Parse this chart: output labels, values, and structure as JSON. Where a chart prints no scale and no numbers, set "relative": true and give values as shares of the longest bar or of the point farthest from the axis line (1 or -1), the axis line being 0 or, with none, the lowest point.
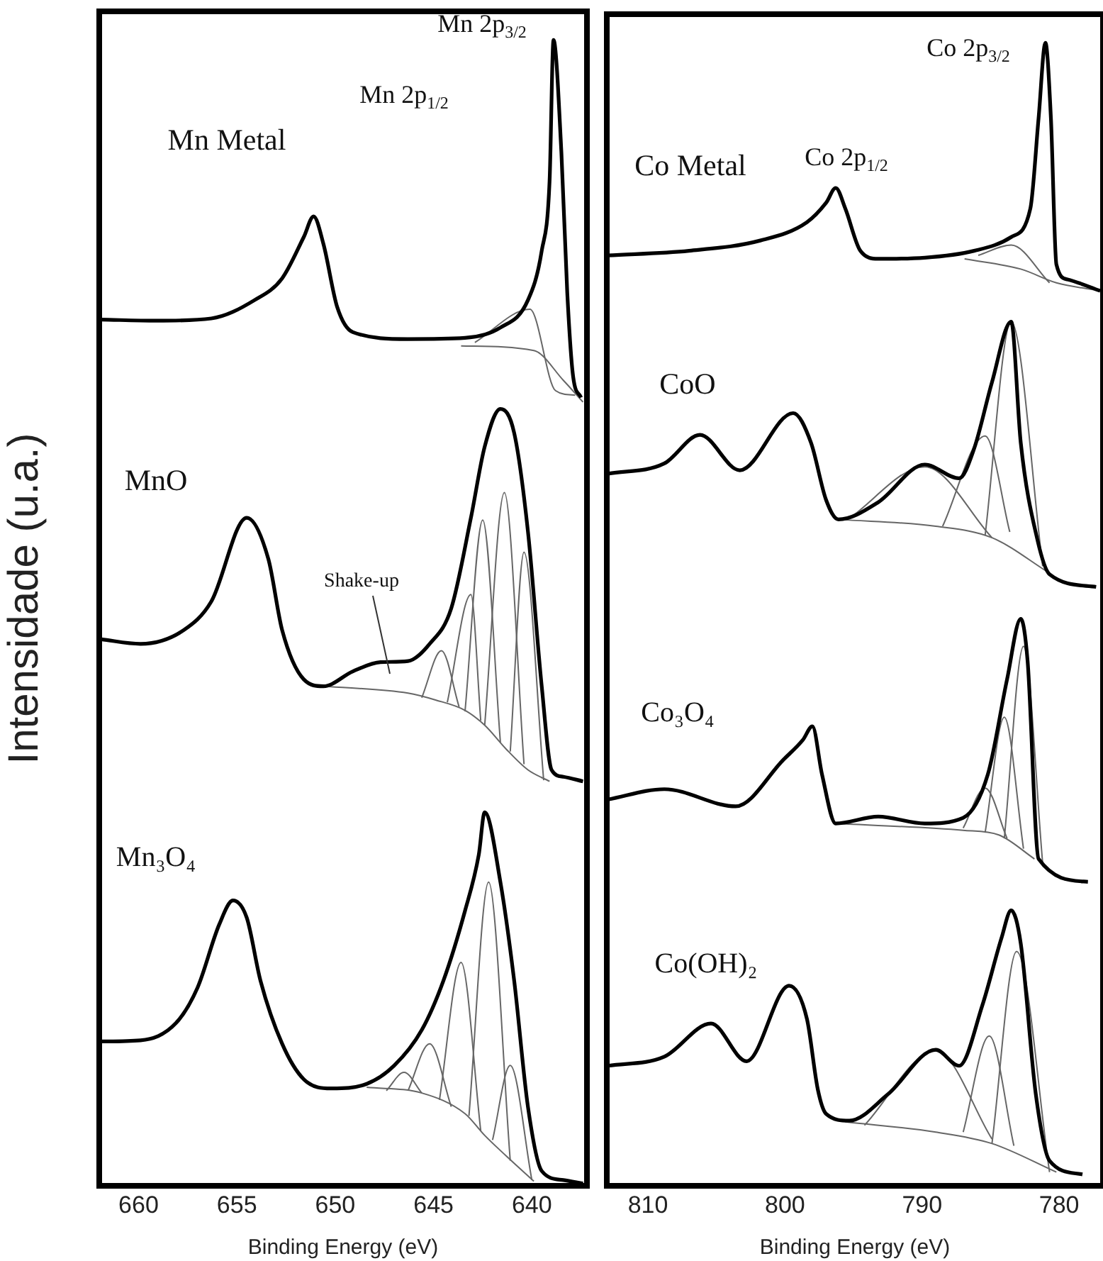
{
  "chart_data": [
    {
      "type": "line",
      "ylabel": "Intensidade (u.a.)",
      "xlabel": "Binding Energy (eV)",
      "relative": true,
      "xlim": [
        662,
        637.2
      ],
      "xticks": [
        660,
        655,
        650,
        645,
        640
      ],
      "grid": false,
      "legend": false,
      "annotations": [
        "Mn Metal",
        "Mn 2p$_{1/2}$",
        "Mn 2p$_{3/2}$",
        "MnO",
        "Shake-up",
        "Mn₃O₄"
      ],
      "series": [
        {
          "color": "#000000",
          "x": [
            661.9,
            659.1,
            656.3,
            654.1,
            652.7,
            651.6,
            651.1,
            650.6,
            649.9,
            649.1,
            646.3,
            643.4,
            641.6,
            640.2,
            639.5,
            639.1,
            638.9,
            638.5,
            638.2,
            637.9,
            637.5
          ],
          "values": [
            0.756,
            0.755,
            0.757,
            0.773,
            0.792,
            0.828,
            0.846,
            0.822,
            0.767,
            0.745,
            0.739,
            0.74,
            0.749,
            0.773,
            0.816,
            0.877,
            1.0,
            0.902,
            0.779,
            0.706,
            0.688
          ]
        },
        {
          "color": "#666666",
          "x": [
            642.9,
            640.1,
            638.8,
            637.8
          ],
          "values": [
            0.736,
            0.765,
            0.694,
            0.69
          ]
        },
        {
          "color": "#666666",
          "x": [
            643.6,
            639.9,
            638.4,
            637.4
          ],
          "values": [
            0.733,
            0.729,
            0.703,
            0.684
          ]
        },
        {
          "color": "#000000",
          "x": [
            661.9,
            659.9,
            657.7,
            656.3,
            654.5,
            653.4,
            652.7,
            651.6,
            650.6,
            649.1,
            647.7,
            646.3,
            645.2,
            644.1,
            643.1,
            642.4,
            641.6,
            640.9,
            640.2,
            639.5,
            639.0,
            638.4,
            637.4
          ],
          "values": [
            0.477,
            0.473,
            0.485,
            0.51,
            0.583,
            0.547,
            0.485,
            0.442,
            0.436,
            0.449,
            0.457,
            0.458,
            0.473,
            0.504,
            0.583,
            0.645,
            0.678,
            0.657,
            0.571,
            0.436,
            0.363,
            0.357,
            0.353
          ]
        },
        {
          "color": "#666666",
          "x": [
            650.6,
            646.3,
            644.9,
            643.4,
            642.4,
            641.3,
            640.2,
            639.1
          ],
          "values": [
            0.436,
            0.43,
            0.424,
            0.415,
            0.402,
            0.381,
            0.363,
            0.353
          ]
        },
        {
          "color": "#666666",
          "x": [
            645.6,
            644.6,
            643.7
          ],
          "values": [
            0.426,
            0.467,
            0.418
          ]
        },
        {
          "color": "#666666",
          "x": [
            644.3,
            643.1,
            642.6
          ],
          "values": [
            0.422,
            0.516,
            0.406
          ]
        },
        {
          "color": "#666666",
          "x": [
            643.4,
            642.5,
            641.6
          ],
          "values": [
            0.414,
            0.581,
            0.387
          ]
        },
        {
          "color": "#666666",
          "x": [
            642.4,
            641.4,
            640.4
          ],
          "values": [
            0.402,
            0.605,
            0.368
          ]
        },
        {
          "color": "#666666",
          "x": [
            641.1,
            640.4,
            639.4
          ],
          "values": [
            0.379,
            0.553,
            0.354
          ]
        },
        {
          "color": "#000000",
          "x": [
            661.9,
            659.9,
            658.1,
            657.0,
            655.9,
            655.2,
            654.5,
            653.8,
            652.7,
            651.6,
            650.2,
            648.4,
            647.0,
            645.6,
            644.5,
            643.4,
            642.7,
            642.4,
            641.6,
            640.9,
            640.2,
            639.5,
            638.4,
            637.4
          ],
          "values": [
            0.126,
            0.127,
            0.142,
            0.173,
            0.228,
            0.249,
            0.234,
            0.179,
            0.124,
            0.093,
            0.085,
            0.089,
            0.105,
            0.136,
            0.179,
            0.24,
            0.289,
            0.326,
            0.265,
            0.179,
            0.069,
            0.013,
            0.005,
            0.002
          ]
        },
        {
          "color": "#666666",
          "x": [
            648.4,
            645.6,
            643.4,
            642.4,
            641.3,
            639.9
          ],
          "values": [
            0.086,
            0.081,
            0.063,
            0.044,
            0.026,
            0.004
          ]
        },
        {
          "color": "#666666",
          "x": [
            647.4,
            646.5,
            645.6
          ],
          "values": [
            0.083,
            0.099,
            0.081
          ]
        },
        {
          "color": "#666666",
          "x": [
            646.3,
            645.2,
            644.1
          ],
          "values": [
            0.083,
            0.124,
            0.069
          ]
        },
        {
          "color": "#666666",
          "x": [
            644.7,
            643.6,
            642.6
          ],
          "values": [
            0.075,
            0.195,
            0.048
          ]
        },
        {
          "color": "#666666",
          "x": [
            643.2,
            642.2,
            641.1
          ],
          "values": [
            0.061,
            0.265,
            0.022
          ]
        },
        {
          "color": "#666666",
          "x": [
            642.0,
            641.1,
            640.0
          ],
          "values": [
            0.04,
            0.105,
            0.005
          ]
        }
      ]
    },
    {
      "type": "line",
      "xlabel": "Binding Energy (eV)",
      "relative": true,
      "xlim": [
        813,
        776.8
      ],
      "xticks": [
        810,
        800,
        790,
        780
      ],
      "grid": false,
      "legend": false,
      "annotations": [
        "Co Metal",
        "Co 2p$_{1/2}$",
        "Co 2p$_{3/2}$",
        "CoO",
        "Co₃O₄",
        "Co(OH)₂"
      ],
      "series": [
        {
          "color": "#000000",
          "x": [
            812.9,
            807.0,
            801.8,
            798.4,
            797.0,
            796.3,
            795.6,
            794.5,
            793.2,
            789.8,
            786.2,
            783.5,
            782.1,
            781.5,
            781.0,
            780.6,
            780.2,
            779.4,
            777.0
          ],
          "values": [
            0.814,
            0.818,
            0.827,
            0.843,
            0.86,
            0.873,
            0.855,
            0.818,
            0.811,
            0.812,
            0.818,
            0.83,
            0.855,
            0.934,
            1.0,
            0.934,
            0.806,
            0.793,
            0.783
          ]
        },
        {
          "color": "#666666",
          "x": [
            786.9,
            782.8,
            780.2,
            777.0
          ],
          "values": [
            0.811,
            0.802,
            0.79,
            0.783
          ]
        },
        {
          "color": "#666666",
          "x": [
            785.9,
            783.5,
            780.7
          ],
          "values": [
            0.814,
            0.823,
            0.79
          ]
        },
        {
          "color": "#000000",
          "x": [
            812.9,
            808.8,
            806.2,
            803.3,
            799.4,
            798.1,
            797.0,
            796.1,
            793.2,
            789.8,
            787.3,
            786.2,
            784.9,
            783.5,
            782.8,
            781.6,
            780.7,
            777.3
          ],
          "values": [
            0.623,
            0.632,
            0.657,
            0.626,
            0.676,
            0.65,
            0.6,
            0.583,
            0.598,
            0.631,
            0.619,
            0.645,
            0.703,
            0.756,
            0.65,
            0.566,
            0.535,
            0.524
          ]
        },
        {
          "color": "#666666",
          "x": [
            796.1,
            789.0,
            784.9,
            780.7
          ],
          "values": [
            0.583,
            0.577,
            0.567,
            0.536
          ]
        },
        {
          "color": "#666666",
          "x": [
            795.3,
            789.8,
            784.9
          ],
          "values": [
            0.584,
            0.629,
            0.567
          ]
        },
        {
          "color": "#666666",
          "x": [
            788.5,
            785.4,
            783.6
          ],
          "values": [
            0.577,
            0.656,
            0.572
          ]
        },
        {
          "color": "#666666",
          "x": [
            785.4,
            783.5,
            781.2
          ],
          "values": [
            0.569,
            0.756,
            0.542
          ]
        },
        {
          "color": "#000000",
          "x": [
            812.9,
            808.8,
            803.6,
            800.1,
            798.7,
            798.0,
            797.3,
            796.3,
            793.2,
            789.8,
            787.0,
            785.2,
            783.8,
            782.8,
            782.3,
            781.5,
            777.9
          ],
          "values": [
            0.338,
            0.347,
            0.332,
            0.373,
            0.39,
            0.402,
            0.36,
            0.317,
            0.323,
            0.317,
            0.322,
            0.36,
            0.443,
            0.496,
            0.459,
            0.286,
            0.266
          ]
        },
        {
          "color": "#666666",
          "x": [
            796.3,
            787.0,
            784.4,
            781.8
          ],
          "values": [
            0.317,
            0.311,
            0.307,
            0.286
          ]
        },
        {
          "color": "#666666",
          "x": [
            787.0,
            785.4,
            783.8
          ],
          "values": [
            0.313,
            0.348,
            0.304
          ]
        },
        {
          "color": "#666666",
          "x": [
            785.4,
            784.0,
            782.6
          ],
          "values": [
            0.309,
            0.41,
            0.295
          ]
        },
        {
          "color": "#666666",
          "x": [
            784.0,
            782.6,
            781.2
          ],
          "values": [
            0.304,
            0.472,
            0.282
          ]
        },
        {
          "color": "#000000",
          "x": [
            812.9,
            808.8,
            805.4,
            802.8,
            799.7,
            798.4,
            797.6,
            797.0,
            795.3,
            792.5,
            789.0,
            787.3,
            785.6,
            784.2,
            783.5,
            782.8,
            781.7,
            780.7,
            778.3
          ],
          "values": [
            0.105,
            0.113,
            0.142,
            0.109,
            0.175,
            0.146,
            0.084,
            0.063,
            0.057,
            0.08,
            0.119,
            0.105,
            0.158,
            0.217,
            0.241,
            0.212,
            0.08,
            0.022,
            0.01
          ]
        },
        {
          "color": "#666666",
          "x": [
            795.6,
            789.0,
            784.9,
            780.2
          ],
          "values": [
            0.056,
            0.047,
            0.037,
            0.012
          ]
        },
        {
          "color": "#666666",
          "x": [
            794.2,
            789.0,
            784.9
          ],
          "values": [
            0.053,
            0.118,
            0.041
          ]
        },
        {
          "color": "#666666",
          "x": [
            787.0,
            785.1,
            783.3
          ],
          "values": [
            0.047,
            0.131,
            0.035
          ]
        },
        {
          "color": "#666666",
          "x": [
            784.9,
            783.1,
            780.7
          ],
          "values": [
            0.037,
            0.205,
            0.012
          ]
        }
      ]
    }
  ]
}
